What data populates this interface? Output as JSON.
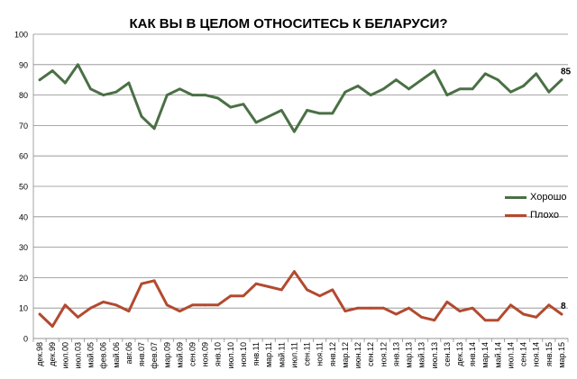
{
  "chart_data": {
    "type": "line",
    "title": "КАК ВЫ В ЦЕЛОМ ОТНОСИТЕСЬ К БЕЛАРУСИ?",
    "ylim": [
      0,
      100
    ],
    "yticks": [
      "0",
      "10",
      "20",
      "30",
      "40",
      "50",
      "60",
      "70",
      "80",
      "90",
      "100"
    ],
    "grid": true,
    "legend_position": "right",
    "categories": [
      "дек.98",
      "дек.99",
      "июл.00",
      "июл.03",
      "май.05",
      "фев.06",
      "май.06",
      "авг.06",
      "янв.07",
      "фев.07",
      "мар.09",
      "май.09",
      "сен.09",
      "ноя.09",
      "янв.10",
      "июл.10",
      "ноя.10",
      "янв.11",
      "мар.11",
      "май.11",
      "июл.11",
      "сен.11",
      "ноя.11",
      "янв.12",
      "мар.12",
      "июн.12",
      "сен.12",
      "ноя.12",
      "янв.13",
      "мар.13",
      "май.13",
      "июл.13",
      "сен.13",
      "дек.13",
      "янв.14",
      "мар.14",
      "май.14",
      "июл.14",
      "сен.14",
      "ноя.14",
      "янв.15",
      "мар.15"
    ],
    "series": [
      {
        "name": "Хорошо",
        "color": "#4a7045",
        "values": [
          85,
          88,
          84,
          90,
          82,
          80,
          81,
          84,
          73,
          69,
          80,
          82,
          80,
          80,
          79,
          76,
          77,
          71,
          73,
          75,
          68,
          75,
          74,
          74,
          81,
          83,
          80,
          82,
          85,
          82,
          85,
          88,
          80,
          82,
          82,
          87,
          85,
          81,
          83,
          87,
          81,
          85
        ],
        "end_label": "85"
      },
      {
        "name": "Плохо",
        "color": "#b24a2f",
        "values": [
          8,
          4,
          11,
          7,
          10,
          12,
          11,
          9,
          18,
          19,
          11,
          9,
          11,
          11,
          11,
          14,
          14,
          18,
          17,
          16,
          22,
          16,
          14,
          16,
          9,
          10,
          10,
          10,
          8,
          10,
          7,
          6,
          12,
          9,
          10,
          6,
          6,
          11,
          8,
          7,
          11,
          8
        ],
        "end_label": "8"
      }
    ]
  }
}
